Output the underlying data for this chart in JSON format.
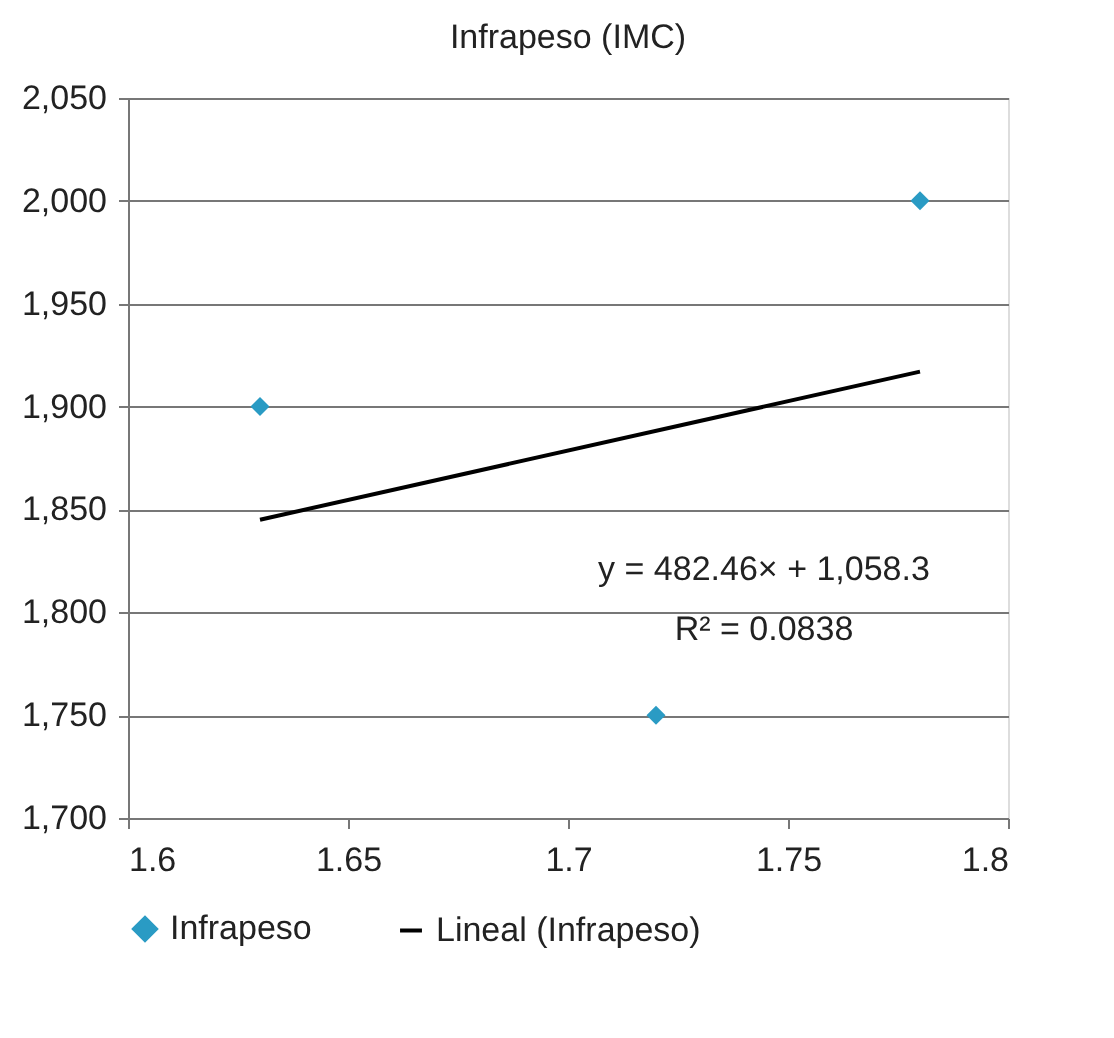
{
  "chart_data": {
    "type": "scatter",
    "title": "Infrapeso (IMC)",
    "series": [
      {
        "name": "Infrapeso",
        "marker": "diamond",
        "color": "#2a9bc4",
        "x": [
          1.63,
          1.72,
          1.78
        ],
        "values": [
          1900,
          1750,
          2000
        ]
      },
      {
        "name": "Lineal (Infrapeso)",
        "type": "line",
        "color": "#000000",
        "x": [
          1.63,
          1.78
        ],
        "values": [
          1845,
          1917
        ]
      }
    ],
    "xlim": [
      1.6,
      1.8
    ],
    "xticks": [
      1.6,
      1.65,
      1.7,
      1.75,
      1.8
    ],
    "ylim": [
      1700,
      2050
    ],
    "yticks": [
      {
        "value": 1700,
        "label": "1,700"
      },
      {
        "value": 1750,
        "label": "1,750"
      },
      {
        "value": 1800,
        "label": "1,800"
      },
      {
        "value": 1850,
        "label": "1,850"
      },
      {
        "value": 1900,
        "label": "1,900"
      },
      {
        "value": 1950,
        "label": "1,950"
      },
      {
        "value": 2000,
        "label": "2,000"
      },
      {
        "value": 2050,
        "label": "2,050"
      }
    ],
    "annotations": [
      "y = 482.46× + 1,058.3",
      "R² = 0.0838"
    ],
    "grid": "y",
    "legend": "bottom"
  }
}
